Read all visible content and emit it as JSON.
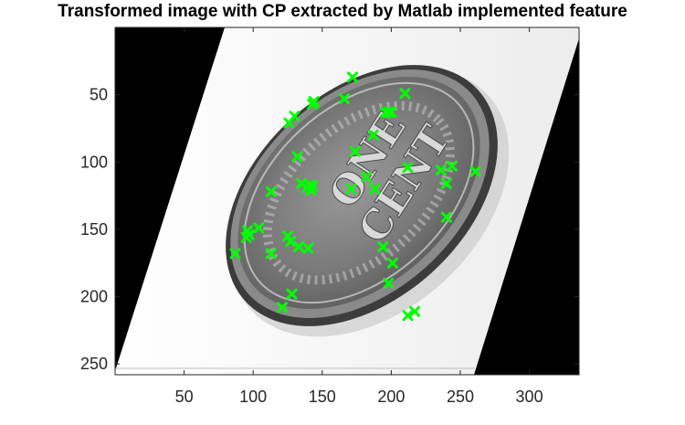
{
  "figure": {
    "title": "Transformed image with CP extracted by Matlab implemented feature",
    "image_description_tag": "coin-one-cent-skewed-grayscale",
    "coin_text": [
      "ONE",
      "CENT"
    ],
    "marker_color": "#00ff00",
    "background_fill": "#000000"
  },
  "axes": {
    "xlim": [
      0,
      336
    ],
    "ylim": [
      0,
      258
    ],
    "y_reversed": true,
    "x_ticks": [
      50,
      100,
      150,
      200,
      250,
      300
    ],
    "y_ticks": [
      50,
      100,
      150,
      200,
      250
    ]
  },
  "control_points": [
    [
      172,
      37
    ],
    [
      210,
      49
    ],
    [
      166,
      53
    ],
    [
      144,
      55
    ],
    [
      143,
      57
    ],
    [
      198,
      63
    ],
    [
      196,
      63
    ],
    [
      200,
      63
    ],
    [
      130,
      66
    ],
    [
      126,
      71
    ],
    [
      187,
      80
    ],
    [
      174,
      92
    ],
    [
      132,
      96
    ],
    [
      212,
      104
    ],
    [
      236,
      106
    ],
    [
      244,
      103
    ],
    [
      261,
      107
    ],
    [
      182,
      111
    ],
    [
      240,
      116
    ],
    [
      135,
      116
    ],
    [
      141,
      117
    ],
    [
      143,
      118
    ],
    [
      139,
      119
    ],
    [
      188,
      120
    ],
    [
      171,
      120
    ],
    [
      142,
      121
    ],
    [
      113,
      122
    ],
    [
      240,
      141
    ],
    [
      104,
      149
    ],
    [
      96,
      151
    ],
    [
      97,
      154
    ],
    [
      95,
      156
    ],
    [
      125,
      155
    ],
    [
      127,
      159
    ],
    [
      133,
      163
    ],
    [
      140,
      164
    ],
    [
      194,
      163
    ],
    [
      113,
      168
    ],
    [
      87,
      168
    ],
    [
      201,
      175
    ],
    [
      198,
      190
    ],
    [
      128,
      198
    ],
    [
      121,
      208
    ],
    [
      217,
      211
    ],
    [
      212,
      214
    ]
  ]
}
